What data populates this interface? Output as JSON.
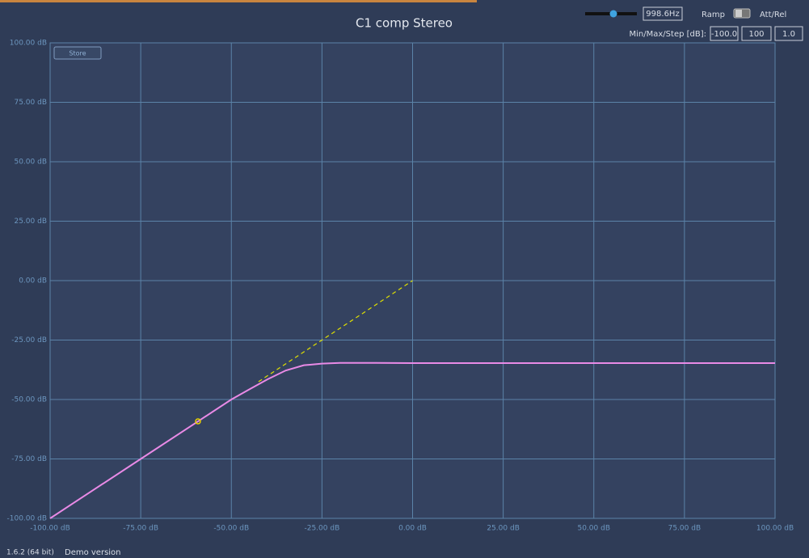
{
  "chart_data": {
    "type": "line",
    "title": "C1 comp Stereo",
    "xlim": [
      -100,
      100
    ],
    "ylim": [
      -100,
      100
    ],
    "xticks": [
      {
        "value": -100,
        "label": "-100.00 dB"
      },
      {
        "value": -75,
        "label": "-75.00 dB"
      },
      {
        "value": -50,
        "label": "-50.00 dB"
      },
      {
        "value": -25,
        "label": "-25.00 dB"
      },
      {
        "value": 0,
        "label": "0.00 dB"
      },
      {
        "value": 25,
        "label": "25.00 dB"
      },
      {
        "value": 50,
        "label": "50.00 dB"
      },
      {
        "value": 75,
        "label": "75.00 dB"
      },
      {
        "value": 100,
        "label": "100.00 dB"
      }
    ],
    "yticks": [
      {
        "value": -100,
        "label": "-100.00 dB"
      },
      {
        "value": -75,
        "label": "-75.00 dB"
      },
      {
        "value": -50,
        "label": "-50.00 dB"
      },
      {
        "value": -25,
        "label": "-25.00 dB"
      },
      {
        "value": 0,
        "label": "0.00 dB"
      },
      {
        "value": 25,
        "label": "25.00 dB"
      },
      {
        "value": 50,
        "label": "50.00 dB"
      },
      {
        "value": 75,
        "label": "75.00 dB"
      },
      {
        "value": 100,
        "label": "100.00 dB"
      }
    ],
    "grid": true,
    "series": [
      {
        "color": "#e98ae6",
        "x": [
          -100,
          -75,
          -60,
          -50,
          -45,
          -40,
          -35,
          -30,
          -25,
          -20,
          -10,
          0,
          50,
          100
        ],
        "values": [
          -100,
          -75,
          -60,
          -50,
          -45.7,
          -41.5,
          -37.8,
          -35.6,
          -34.9,
          -34.6,
          -34.6,
          -34.7,
          -34.7,
          -34.7
        ]
      },
      {
        "color": "#e0e000",
        "dashed": true,
        "x": [
          -42.5,
          0
        ],
        "values": [
          -42.5,
          0
        ]
      }
    ],
    "marker": {
      "x": -59.2,
      "y": -59.2,
      "color": "#e8d000"
    }
  },
  "ui": {
    "frequency": "998.6Hz",
    "ramp": "Ramp",
    "att_rel": "Att/Rel",
    "minmax_label": "Min/Max/Step [dB]:",
    "min": "-100.0",
    "max": "100",
    "step": "1.0",
    "store": "Store",
    "version": "1.6.2 (64 bit)",
    "demo": "Demo version"
  }
}
